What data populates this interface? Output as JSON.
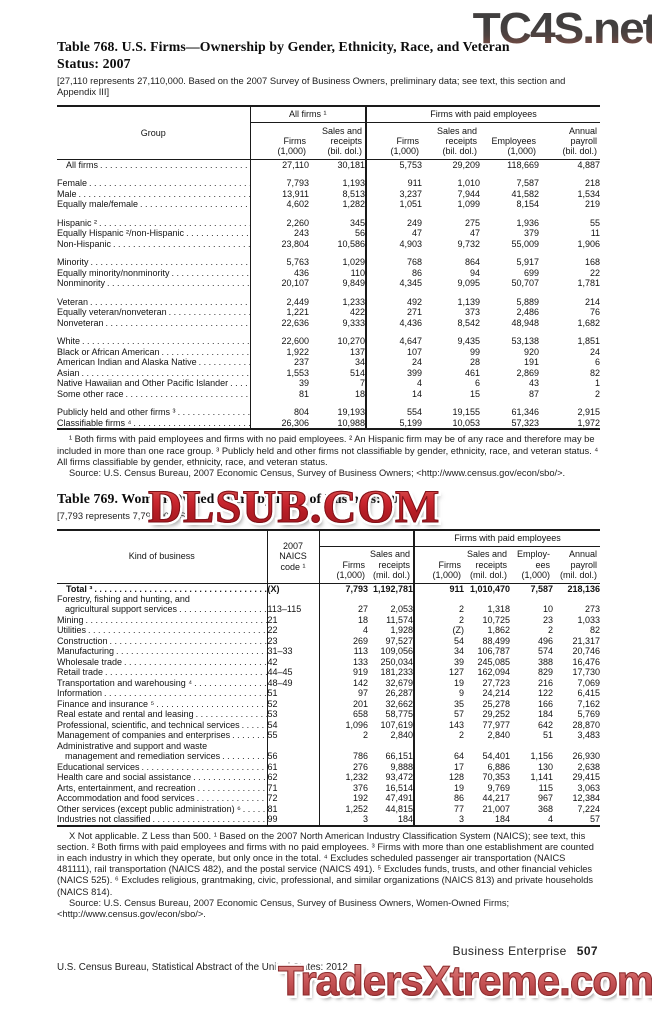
{
  "watermarks": {
    "top": "TC4S.net",
    "middle": "DLSUB.COM",
    "bottom": "TradersXtreme.com"
  },
  "colors": {
    "watermark_top_gray": "#413f3f",
    "watermark_middle_red": "#c2232b",
    "watermark_bottom_salmon": "#cc5a5c"
  },
  "table768": {
    "title": "Table 768. U.S. Firms—Ownership by Gender, Ethnicity, Race, and Veteran\nStatus: 2007",
    "headnote": "[27,110 represents 27,110,000. Based on the 2007 Survey of Business Owners, preliminary data; see text, this section and\nAppendix III]",
    "stub_header": "Group",
    "span_all_firms": "All firms ¹",
    "span_paid": "Firms with paid employees",
    "columns": [
      "Firms\n(1,000)",
      "Sales and\nreceipts\n(bil. dol.)",
      "Firms\n(1,000)",
      "Sales and\nreceipts\n(bil. dol.)",
      "Employees\n(1,000)",
      "Annual\npayroll\n(bil. dol.)"
    ],
    "rows": [
      {
        "label": "All firms",
        "cls": "total",
        "cells": [
          "27,110",
          "30,181",
          "5,753",
          "29,209",
          "118,669",
          "4,887"
        ]
      },
      {
        "gap": true
      },
      {
        "label": "Female",
        "cells": [
          "7,793",
          "1,193",
          "911",
          "1,010",
          "7,587",
          "218"
        ]
      },
      {
        "label": "Male",
        "cells": [
          "13,911",
          "8,513",
          "3,237",
          "7,944",
          "41,582",
          "1,534"
        ]
      },
      {
        "label": "Equally male/female",
        "cells": [
          "4,602",
          "1,282",
          "1,051",
          "1,099",
          "8,154",
          "219"
        ]
      },
      {
        "gap": true
      },
      {
        "label": "Hispanic ²",
        "cells": [
          "2,260",
          "345",
          "249",
          "275",
          "1,936",
          "55"
        ]
      },
      {
        "label": "Equally Hispanic ²/non-Hispanic",
        "cells": [
          "243",
          "56",
          "47",
          "47",
          "379",
          "11"
        ]
      },
      {
        "label": "Non-Hispanic",
        "cells": [
          "23,804",
          "10,586",
          "4,903",
          "9,732",
          "55,009",
          "1,906"
        ]
      },
      {
        "gap": true
      },
      {
        "label": "Minority",
        "cells": [
          "5,763",
          "1,029",
          "768",
          "864",
          "5,917",
          "168"
        ]
      },
      {
        "label": "Equally minority/nonminority",
        "cells": [
          "436",
          "110",
          "86",
          "94",
          "699",
          "22"
        ]
      },
      {
        "label": "Nonminority",
        "cells": [
          "20,107",
          "9,849",
          "4,345",
          "9,095",
          "50,707",
          "1,781"
        ]
      },
      {
        "gap": true
      },
      {
        "label": "Veteran",
        "cells": [
          "2,449",
          "1,233",
          "492",
          "1,139",
          "5,889",
          "214"
        ]
      },
      {
        "label": "Equally veteran/nonveteran",
        "cells": [
          "1,221",
          "422",
          "271",
          "373",
          "2,486",
          "76"
        ]
      },
      {
        "label": "Nonveteran",
        "cells": [
          "22,636",
          "9,333",
          "4,436",
          "8,542",
          "48,948",
          "1,682"
        ]
      },
      {
        "gap": true
      },
      {
        "label": "White",
        "cells": [
          "22,600",
          "10,270",
          "4,647",
          "9,435",
          "53,138",
          "1,851"
        ]
      },
      {
        "label": "Black or African American",
        "cells": [
          "1,922",
          "137",
          "107",
          "99",
          "920",
          "24"
        ]
      },
      {
        "label": "American Indian and Alaska Native",
        "cells": [
          "237",
          "34",
          "24",
          "28",
          "191",
          "6"
        ]
      },
      {
        "label": "Asian",
        "cells": [
          "1,553",
          "514",
          "399",
          "461",
          "2,869",
          "82"
        ]
      },
      {
        "label": "Native Hawaiian and Other Pacific Islander",
        "cells": [
          "39",
          "7",
          "4",
          "6",
          "43",
          "1"
        ]
      },
      {
        "label": "Some other race",
        "cells": [
          "81",
          "18",
          "14",
          "15",
          "87",
          "2"
        ]
      },
      {
        "gap": true
      },
      {
        "label": "Publicly held and other firms ³",
        "cells": [
          "804",
          "19,193",
          "554",
          "19,155",
          "61,346",
          "2,915"
        ]
      },
      {
        "label": "Classifiable firms ⁴",
        "cells": [
          "26,306",
          "10,988",
          "5,199",
          "10,053",
          "57,323",
          "1,972"
        ]
      }
    ],
    "footnotes": "¹ Both firms with paid employees and firms with no paid employees. ² An Hispanic firm may be of any race and therefore may be included in more than one race group. ³ Publicly held and other firms not classifiable by gender, ethnicity, race, and veteran status. ⁴ All firms classifiable by gender, ethnicity, race, and veteran status.",
    "source": "Source: U.S. Census Bureau, 2007 Economic Census, Survey of Business Owners; <http://www.census.gov/econ/sbo/>."
  },
  "table769": {
    "title": "Table 769. Women-Owned Firms by Kind of Business: 2007",
    "headnote": "[7,793 represents 7,793,000. Se",
    "stub_header": "Kind of business",
    "naics_header": "2007\nNAICS\ncode ¹",
    "span_left": "",
    "span_paid": "Firms with paid employees",
    "columns": [
      "Firms\n(1,000)",
      "Sales and\nreceipts\n(mil. dol.)",
      "Firms\n(1,000)",
      "Sales and\nreceipts\n(mil. dol.)",
      "Employ-\nees\n(1,000)",
      "Annual\npayroll\n(mil. dol.)"
    ],
    "rows": [
      {
        "label": "Total ³",
        "cls": "total",
        "bold": true,
        "cells": [
          "(X)",
          "7,793",
          "1,192,781",
          "911",
          "1,010,470",
          "7,587",
          "218,136"
        ]
      },
      {
        "label": "Forestry, fishing and hunting, and",
        "label2": "agricultural support services",
        "cells": [
          "113–115",
          "27",
          "2,053",
          "2",
          "1,318",
          "10",
          "273"
        ]
      },
      {
        "label": "Mining",
        "cells": [
          "21",
          "18",
          "11,574",
          "2",
          "10,725",
          "23",
          "1,033"
        ]
      },
      {
        "label": "Utilities",
        "cells": [
          "22",
          "4",
          "1,928",
          "(Z)",
          "1,862",
          "2",
          "82"
        ]
      },
      {
        "label": "Construction",
        "cells": [
          "23",
          "269",
          "97,527",
          "54",
          "88,499",
          "496",
          "21,317"
        ]
      },
      {
        "label": "Manufacturing",
        "cells": [
          "31–33",
          "113",
          "109,056",
          "34",
          "106,787",
          "574",
          "20,746"
        ]
      },
      {
        "label": "Wholesale trade",
        "cells": [
          "42",
          "133",
          "250,034",
          "39",
          "245,085",
          "388",
          "16,476"
        ]
      },
      {
        "label": "Retail trade",
        "cells": [
          "44–45",
          "919",
          "181,233",
          "127",
          "162,094",
          "829",
          "17,730"
        ]
      },
      {
        "label": "Transportation and warehousing ⁴",
        "cells": [
          "48–49",
          "142",
          "32,679",
          "19",
          "27,723",
          "216",
          "7,069"
        ]
      },
      {
        "label": "Information",
        "cells": [
          "51",
          "97",
          "26,287",
          "9",
          "24,214",
          "122",
          "6,415"
        ]
      },
      {
        "label": "Finance and insurance ⁵",
        "cells": [
          "52",
          "201",
          "32,662",
          "35",
          "25,278",
          "166",
          "7,162"
        ]
      },
      {
        "label": "Real estate and rental and leasing",
        "cells": [
          "53",
          "658",
          "58,775",
          "57",
          "29,252",
          "184",
          "5,769"
        ]
      },
      {
        "label": "Professional, scientific, and technical services",
        "cells": [
          "54",
          "1,096",
          "107,619",
          "143",
          "77,977",
          "642",
          "28,870"
        ]
      },
      {
        "label": "Management of companies and enterprises",
        "cells": [
          "55",
          "2",
          "2,840",
          "2",
          "2,840",
          "51",
          "3,483"
        ]
      },
      {
        "label": "Administrative and support and waste",
        "label2": "management and remediation services",
        "cells": [
          "56",
          "786",
          "66,151",
          "64",
          "54,401",
          "1,156",
          "26,930"
        ]
      },
      {
        "label": "Educational services",
        "cells": [
          "61",
          "276",
          "9,888",
          "17",
          "6,886",
          "130",
          "2,638"
        ]
      },
      {
        "label": "Health care and social assistance",
        "cells": [
          "62",
          "1,232",
          "93,472",
          "128",
          "70,353",
          "1,141",
          "29,415"
        ]
      },
      {
        "label": "Arts, entertainment, and recreation",
        "cells": [
          "71",
          "376",
          "16,514",
          "19",
          "9,769",
          "115",
          "3,063"
        ]
      },
      {
        "label": "Accommodation and food services",
        "cells": [
          "72",
          "192",
          "47,491",
          "86",
          "44,217",
          "967",
          "12,384"
        ]
      },
      {
        "label": "Other services (except public administration) ⁶",
        "cells": [
          "81",
          "1,252",
          "44,815",
          "77",
          "21,007",
          "368",
          "7,224"
        ]
      },
      {
        "label": "Industries not classified",
        "cells": [
          "99",
          "3",
          "184",
          "3",
          "184",
          "4",
          "57"
        ]
      }
    ],
    "footnotes": "X Not applicable. Z Less than 500. ¹ Based on the 2007 North American Industry Classification System (NAICS); see text, this section. ² Both firms with paid employees and firms with no paid employees. ³ Firms with more than one establishment are counted in each industry in which they operate, but only once in the total. ⁴ Excludes scheduled passenger air transportation (NAICS 481111), rail transportation (NAICS 482), and the postal service (NAICS 491). ⁵ Excludes funds, trusts, and other financial vehicles (NAICS 525). ⁶ Excludes religious, grantmaking, civic, professional, and similar organizations (NAICS 813) and private households (NAICS 814).",
    "source": "Source: U.S. Census Bureau, 2007 Economic Census, Survey of Business Owners, Women-Owned Firms; <http://www.census.gov/econ/sbo/>."
  },
  "footer": {
    "section": "Business Enterprise",
    "page": "507",
    "credit": "U.S. Census Bureau, Statistical Abstract of the United States: 2012"
  }
}
